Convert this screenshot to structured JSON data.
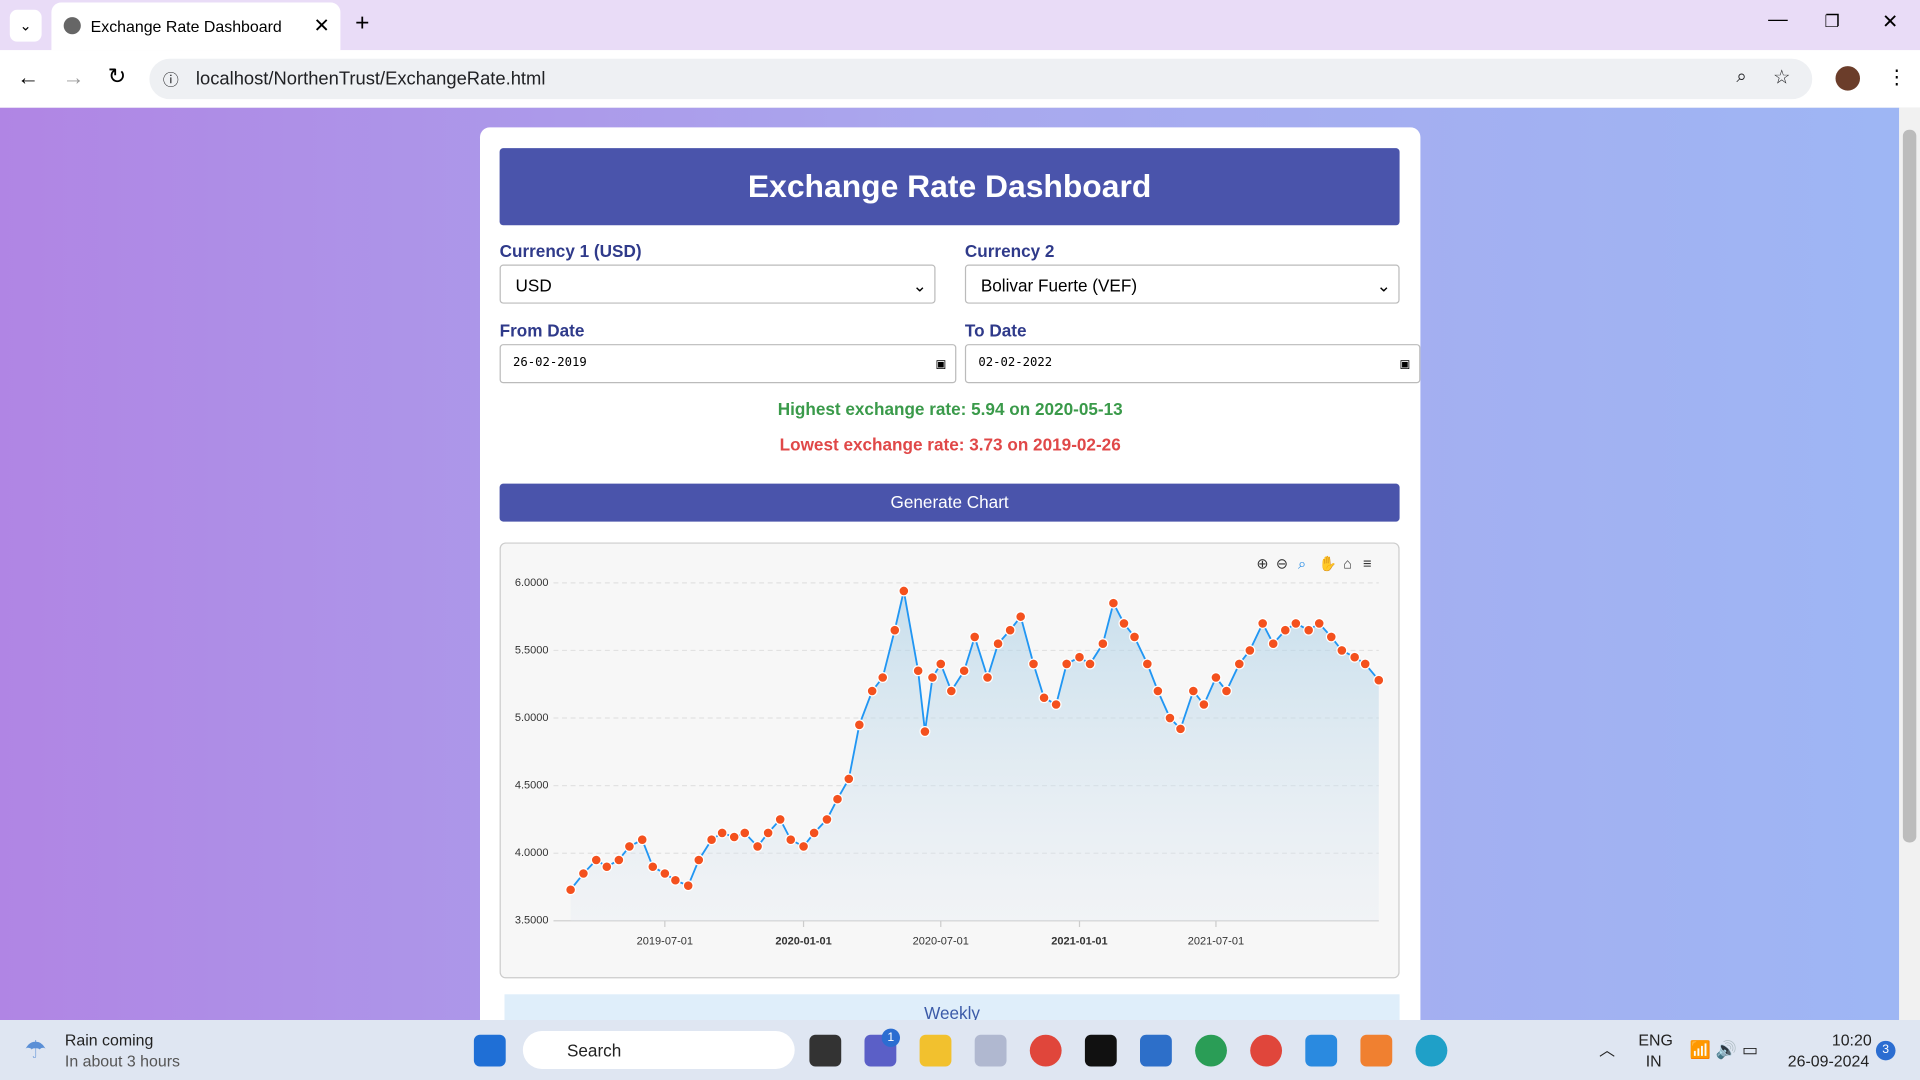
{
  "browser": {
    "tab_title": "Exchange Rate Dashboard",
    "url": "localhost/NorthenTrust/ExchangeRate.html"
  },
  "header": {
    "title": "Exchange Rate Dashboard"
  },
  "form": {
    "currency1_label": "Currency 1 (USD)",
    "currency1_value": "USD",
    "currency2_label": "Currency 2",
    "currency2_value": "Bolivar Fuerte (VEF)",
    "from_label": "From Date",
    "from_value": "26-02-2019",
    "to_label": "To Date",
    "to_value": "02-02-2022"
  },
  "results": {
    "highest": "Highest exchange rate: 5.94 on 2020-05-13",
    "lowest": "Lowest exchange rate: 3.73 on 2019-02-26"
  },
  "button": "Generate Chart",
  "chart_data": {
    "type": "line",
    "color": "#f4511e",
    "line_color": "#2196f3",
    "grid": true,
    "x": [
      "2019-02-26",
      "2019-03-15",
      "2019-04-01",
      "2019-04-15",
      "2019-05-01",
      "2019-05-15",
      "2019-06-01",
      "2019-06-15",
      "2019-07-01",
      "2019-07-15",
      "2019-08-01",
      "2019-08-15",
      "2019-09-01",
      "2019-09-15",
      "2019-10-01",
      "2019-10-15",
      "2019-11-01",
      "2019-11-15",
      "2019-12-01",
      "2019-12-15",
      "2020-01-01",
      "2020-01-15",
      "2020-02-01",
      "2020-02-15",
      "2020-03-01",
      "2020-03-15",
      "2020-04-01",
      "2020-04-15",
      "2020-05-01",
      "2020-05-13",
      "2020-06-01",
      "2020-06-10",
      "2020-06-20",
      "2020-07-01",
      "2020-07-15",
      "2020-08-01",
      "2020-08-15",
      "2020-09-01",
      "2020-09-15",
      "2020-10-01",
      "2020-10-15",
      "2020-11-01",
      "2020-11-15",
      "2020-12-01",
      "2020-12-15",
      "2021-01-01",
      "2021-01-15",
      "2021-02-01",
      "2021-02-15",
      "2021-03-01",
      "2021-03-15",
      "2021-04-01",
      "2021-04-15",
      "2021-05-01",
      "2021-05-15",
      "2021-06-01",
      "2021-06-15",
      "2021-07-01",
      "2021-07-15",
      "2021-08-01",
      "2021-08-15",
      "2021-09-01",
      "2021-09-15",
      "2021-10-01",
      "2021-10-15",
      "2021-11-01",
      "2021-11-15",
      "2021-12-01",
      "2021-12-15",
      "2022-01-01",
      "2022-01-15",
      "2022-02-02"
    ],
    "values": [
      3.73,
      3.85,
      3.95,
      3.9,
      3.95,
      4.05,
      4.1,
      3.9,
      3.85,
      3.8,
      3.76,
      3.95,
      4.1,
      4.15,
      4.12,
      4.15,
      4.05,
      4.15,
      4.25,
      4.1,
      4.05,
      4.15,
      4.25,
      4.4,
      4.55,
      4.95,
      5.2,
      5.3,
      5.65,
      5.94,
      5.35,
      4.9,
      5.3,
      5.4,
      5.2,
      5.35,
      5.6,
      5.3,
      5.55,
      5.65,
      5.75,
      5.4,
      5.15,
      5.1,
      5.4,
      5.45,
      5.4,
      5.55,
      5.85,
      5.7,
      5.6,
      5.4,
      5.2,
      5.0,
      4.92,
      5.2,
      5.1,
      5.3,
      5.2,
      5.4,
      5.5,
      5.7,
      5.55,
      5.65,
      5.7,
      5.65,
      5.7,
      5.6,
      5.5,
      5.45,
      5.4,
      5.28
    ],
    "xlim": [
      "2019-02-26",
      "2022-02-02"
    ],
    "xticks": [
      "2019-07-01",
      "2020-01-01",
      "2020-07-01",
      "2021-01-01",
      "2021-07-01"
    ],
    "ylim": [
      3.5,
      6.0
    ],
    "yticks": [
      {
        "value": 3.5,
        "label": "3.5000"
      },
      {
        "value": 4,
        "label": "4.0000"
      },
      {
        "value": 4.5,
        "label": "4.5000"
      },
      {
        "value": 5,
        "label": "5.0000"
      },
      {
        "value": 5.5,
        "label": "5.5000"
      },
      {
        "value": 6,
        "label": "6.0000"
      }
    ]
  },
  "tab_below": "Weekly",
  "taskbar": {
    "weather_title": "Rain coming",
    "weather_sub": "In about 3 hours",
    "search": "Search",
    "badge": "1",
    "lang": "ENG",
    "region": "IN",
    "time": "10:20",
    "date": "26-09-2024",
    "notifications": "3"
  }
}
